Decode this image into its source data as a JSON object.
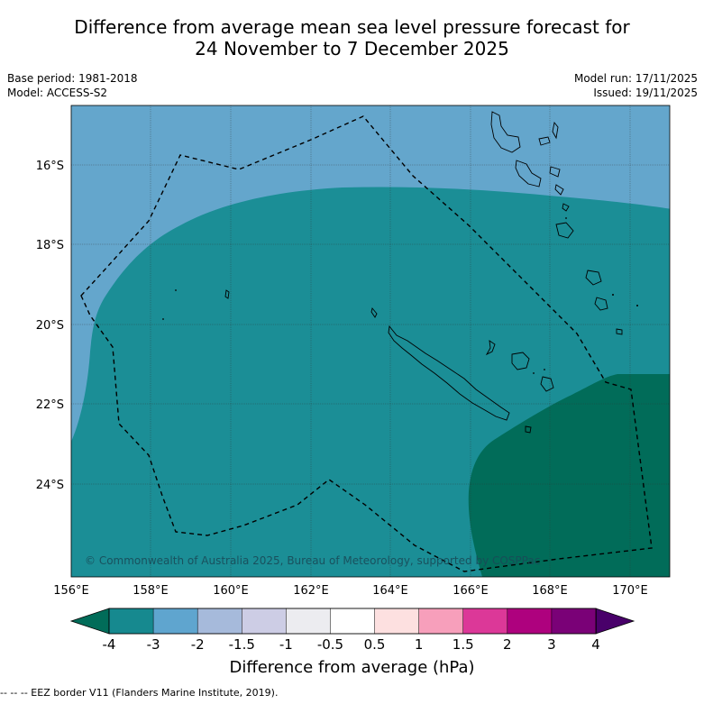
{
  "title_line1": "Difference from average mean sea level pressure forecast for",
  "title_line2": "24 November to 7 December 2025",
  "base_period": "Base period: 1981-2018",
  "model": "Model: ACCESS-S2",
  "model_run": "Model run: 17/11/2025",
  "issued": "Issued: 19/11/2025",
  "copyright": "© Commonwealth of Australia 2025, Bureau of Meteorology, supported by COSPPac",
  "lon_labels": [
    "156°E",
    "158°E",
    "160°E",
    "162°E",
    "164°E",
    "166°E",
    "168°E",
    "170°E"
  ],
  "lat_labels": [
    "16°S",
    "18°S",
    "20°S",
    "22°S",
    "24°S"
  ],
  "colorbar": {
    "title": "Difference from average (hPa)",
    "ticks": [
      "-4",
      "-3",
      "-2",
      "-1.5",
      "-1",
      "-0.5",
      "0.5",
      "1",
      "1.5",
      "2",
      "3",
      "4"
    ],
    "colors": [
      "#16898f",
      "#5fa5cf",
      "#a6badb",
      "#cdcde5",
      "#ececf0",
      "#ffffff",
      "#fde0e0",
      "#f79fbb",
      "#dc3898",
      "#ae017e",
      "#7a0177"
    ],
    "under_color": "#016c59",
    "over_color": "#49006a"
  },
  "map_colors": {
    "band_minus2_to_minus3": "#64a6cc",
    "band_minus3_to_minus4": "#1b8e96",
    "band_below_minus4": "#016c59"
  },
  "eez_legend": "-- -- -- EEZ border V11 (Flanders Marine Institute, 2019)."
}
